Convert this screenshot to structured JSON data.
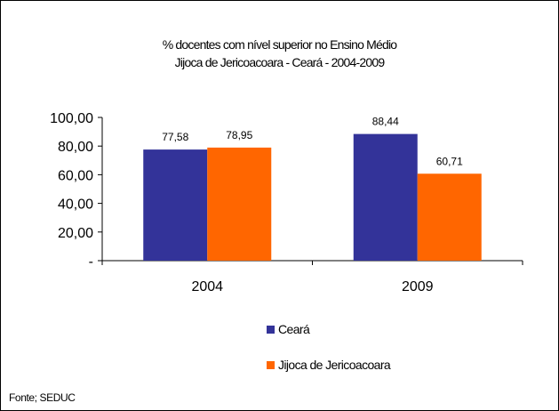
{
  "chart_data": {
    "type": "bar",
    "title_lines": [
      "% docentes com nível superior no Ensino Médio",
      "Jijoca de Jericoacoara - Ceará - 2004-2009"
    ],
    "categories": [
      "2004",
      "2009"
    ],
    "series": [
      {
        "name": "Ceará",
        "values": [
          77.58,
          88.44
        ],
        "labels": [
          "77,58",
          "88,44"
        ],
        "color": "#333399"
      },
      {
        "name": "Jijoca de Jericoacoara",
        "values": [
          78.95,
          60.71
        ],
        "labels": [
          "78,95",
          "60,71"
        ],
        "color": "#FF6600"
      }
    ],
    "y_ticks": [
      {
        "value": 0,
        "label": "-"
      },
      {
        "value": 20,
        "label": "20,00"
      },
      {
        "value": 40,
        "label": "40,00"
      },
      {
        "value": 60,
        "label": "60,00"
      },
      {
        "value": 80,
        "label": "80,00"
      },
      {
        "value": 100,
        "label": "100,00"
      }
    ],
    "ylim": [
      0,
      100
    ],
    "grid": false,
    "legend_position": "bottom-center",
    "source": "Fonte; SEDUC"
  }
}
